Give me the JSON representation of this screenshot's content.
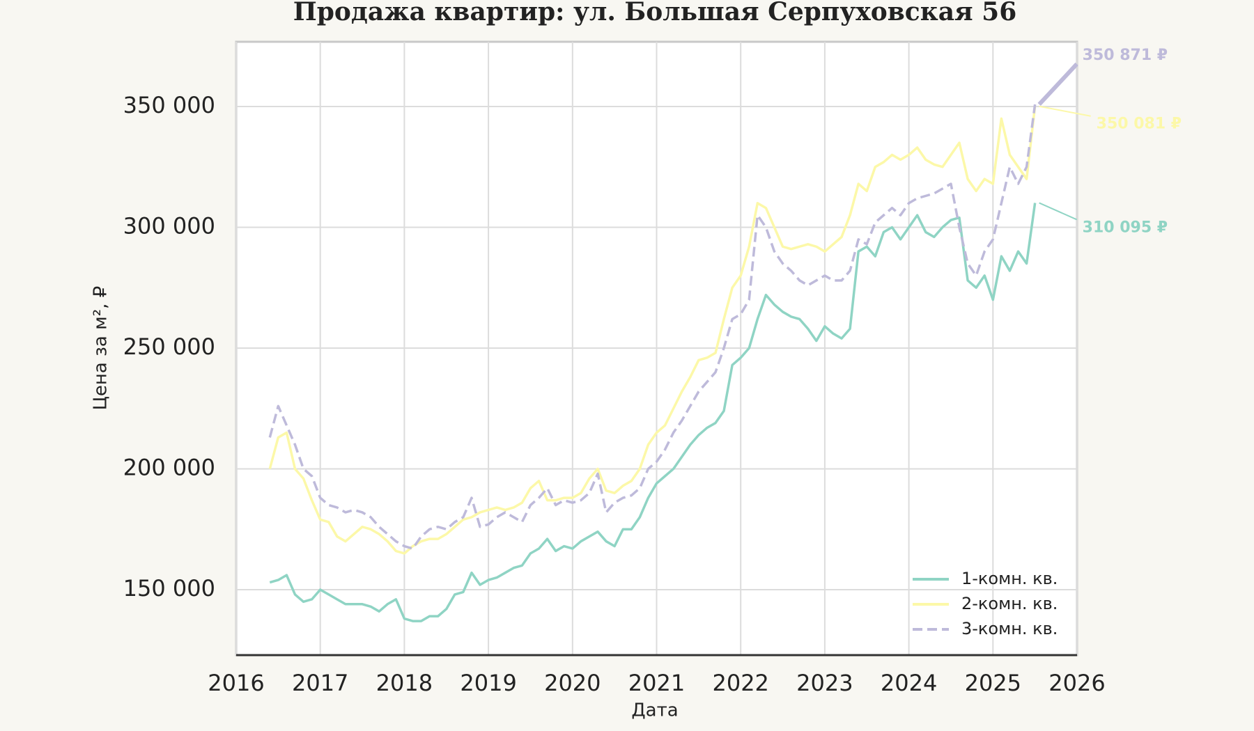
{
  "chart_data": {
    "type": "line",
    "title": "Продажа квартир: ул. Большая Серпуховская 56",
    "xlabel": "Дата",
    "ylabel": "Цена за м², ₽",
    "x": [
      2016.4,
      2016.5,
      2016.6,
      2016.7,
      2016.8,
      2016.9,
      2017.0,
      2017.1,
      2017.2,
      2017.3,
      2017.4,
      2017.5,
      2017.6,
      2017.7,
      2017.8,
      2017.9,
      2018.0,
      2018.1,
      2018.2,
      2018.3,
      2018.4,
      2018.5,
      2018.6,
      2018.7,
      2018.8,
      2018.9,
      2019.0,
      2019.1,
      2019.2,
      2019.3,
      2019.4,
      2019.5,
      2019.6,
      2019.7,
      2019.8,
      2019.9,
      2020.0,
      2020.1,
      2020.2,
      2020.3,
      2020.4,
      2020.5,
      2020.6,
      2020.7,
      2020.8,
      2020.9,
      2021.0,
      2021.1,
      2021.2,
      2021.3,
      2021.4,
      2021.5,
      2021.6,
      2021.7,
      2021.8,
      2021.9,
      2022.0,
      2022.1,
      2022.2,
      2022.3,
      2022.4,
      2022.5,
      2022.6,
      2022.7,
      2022.8,
      2022.9,
      2023.0,
      2023.1,
      2023.2,
      2023.3,
      2023.4,
      2023.5,
      2023.6,
      2023.7,
      2023.8,
      2023.9,
      2024.0,
      2024.1,
      2024.2,
      2024.3,
      2024.4,
      2024.5,
      2024.6,
      2024.7,
      2024.8,
      2024.9,
      2025.0,
      2025.1,
      2025.2,
      2025.3,
      2025.4,
      2025.5
    ],
    "series": [
      {
        "name": "1-комн. кв.",
        "color": "#8fd4c4",
        "dash": false,
        "end_label": "310 095 ₽",
        "values": [
          153000,
          154000,
          156000,
          148000,
          145000,
          146000,
          150000,
          148000,
          146000,
          144000,
          144000,
          144000,
          143000,
          141000,
          144000,
          146000,
          138000,
          137000,
          137000,
          139000,
          139000,
          142000,
          148000,
          149000,
          157000,
          152000,
          154000,
          155000,
          157000,
          159000,
          160000,
          165000,
          167000,
          171000,
          166000,
          168000,
          167000,
          170000,
          172000,
          174000,
          170000,
          168000,
          175000,
          175000,
          180000,
          188000,
          194000,
          197000,
          200000,
          205000,
          210000,
          214000,
          217000,
          219000,
          224000,
          243000,
          246000,
          250000,
          262000,
          272000,
          268000,
          265000,
          263000,
          262000,
          258000,
          253000,
          259000,
          256000,
          254000,
          258000,
          290000,
          292000,
          288000,
          298000,
          300000,
          295000,
          300000,
          305000,
          298000,
          296000,
          300000,
          303000,
          304000,
          278000,
          275000,
          280000,
          270000,
          288000,
          282000,
          290000,
          285000,
          310095
        ]
      },
      {
        "name": "2-комн. кв.",
        "color": "#fcf8a8",
        "dash": false,
        "end_label": "350 081 ₽",
        "values": [
          200000,
          213000,
          215000,
          200000,
          196000,
          187000,
          179000,
          178000,
          172000,
          170000,
          173000,
          176000,
          175000,
          173000,
          170000,
          166000,
          165000,
          168000,
          170000,
          171000,
          171000,
          173000,
          176000,
          179000,
          180000,
          182000,
          183000,
          184000,
          183000,
          184000,
          186000,
          192000,
          195000,
          187000,
          187000,
          188000,
          188000,
          190000,
          196000,
          200000,
          191000,
          190000,
          193000,
          195000,
          200000,
          210000,
          215000,
          218000,
          225000,
          232000,
          238000,
          245000,
          246000,
          248000,
          262000,
          275000,
          280000,
          292000,
          310000,
          308000,
          300000,
          292000,
          291000,
          292000,
          293000,
          292000,
          290000,
          293000,
          296000,
          305000,
          318000,
          315000,
          325000,
          327000,
          330000,
          328000,
          330000,
          333000,
          328000,
          326000,
          325000,
          330000,
          335000,
          320000,
          315000,
          320000,
          318000,
          345000,
          330000,
          325000,
          320000,
          350081
        ]
      },
      {
        "name": "3-комн. кв.",
        "color": "#bebada",
        "dash": true,
        "end_label": "350 871 ₽",
        "values": [
          213000,
          226000,
          218000,
          210000,
          200000,
          197000,
          188000,
          185000,
          184000,
          182000,
          183000,
          182000,
          180000,
          176000,
          173000,
          170000,
          168000,
          167000,
          172000,
          175000,
          176000,
          175000,
          178000,
          180000,
          188000,
          176000,
          177000,
          180000,
          182000,
          180000,
          178000,
          185000,
          188000,
          192000,
          185000,
          187000,
          186000,
          187000,
          190000,
          198000,
          182000,
          186000,
          188000,
          189000,
          192000,
          200000,
          203000,
          208000,
          215000,
          220000,
          226000,
          232000,
          236000,
          240000,
          250000,
          262000,
          264000,
          270000,
          305000,
          300000,
          290000,
          285000,
          282000,
          278000,
          276000,
          278000,
          280000,
          278000,
          278000,
          282000,
          295000,
          293000,
          302000,
          305000,
          308000,
          305000,
          310000,
          312000,
          313000,
          314000,
          316000,
          318000,
          300000,
          285000,
          280000,
          290000,
          295000,
          310000,
          325000,
          318000,
          325000,
          350871
        ]
      }
    ],
    "xlim": [
      2016,
      2026
    ],
    "xticks": [
      2016,
      2017,
      2018,
      2019,
      2020,
      2021,
      2022,
      2023,
      2024,
      2025,
      2026
    ],
    "ylim": [
      122900,
      376800
    ],
    "yticks": [
      {
        "value": 150000,
        "label": "150 000"
      },
      {
        "value": 200000,
        "label": "200 000"
      },
      {
        "value": 250000,
        "label": "250 000"
      },
      {
        "value": 300000,
        "label": "300 000"
      },
      {
        "value": 350000,
        "label": "350 000"
      }
    ],
    "grid": true,
    "legend": "lower right"
  }
}
